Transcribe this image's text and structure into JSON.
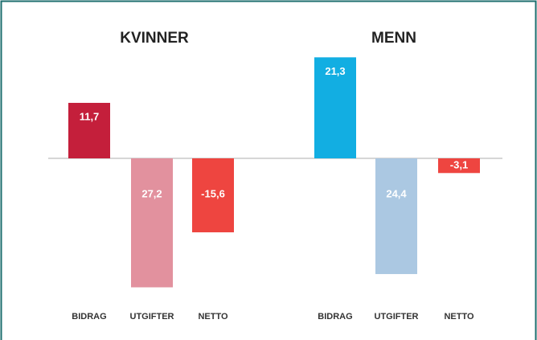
{
  "chart_data": [
    {
      "type": "bar",
      "title": "KVINNER",
      "categories": [
        "BIDRAG",
        "UTGIFTER",
        "NETTO"
      ],
      "values": [
        11.7,
        -27.2,
        -15.6
      ],
      "value_labels": [
        "11,7",
        "27,2",
        "-15,6"
      ],
      "colors": [
        "#c41f3b",
        "#e2919e",
        "#ee4540"
      ]
    },
    {
      "type": "bar",
      "title": "MENN",
      "categories": [
        "BIDRAG",
        "UTGIFTER",
        "NETTO"
      ],
      "values": [
        21.3,
        -24.4,
        -3.1
      ],
      "value_labels": [
        "21,3",
        "24,4",
        "-3,1"
      ],
      "colors": [
        "#12aee2",
        "#abc8e2",
        "#ee4540"
      ]
    }
  ]
}
